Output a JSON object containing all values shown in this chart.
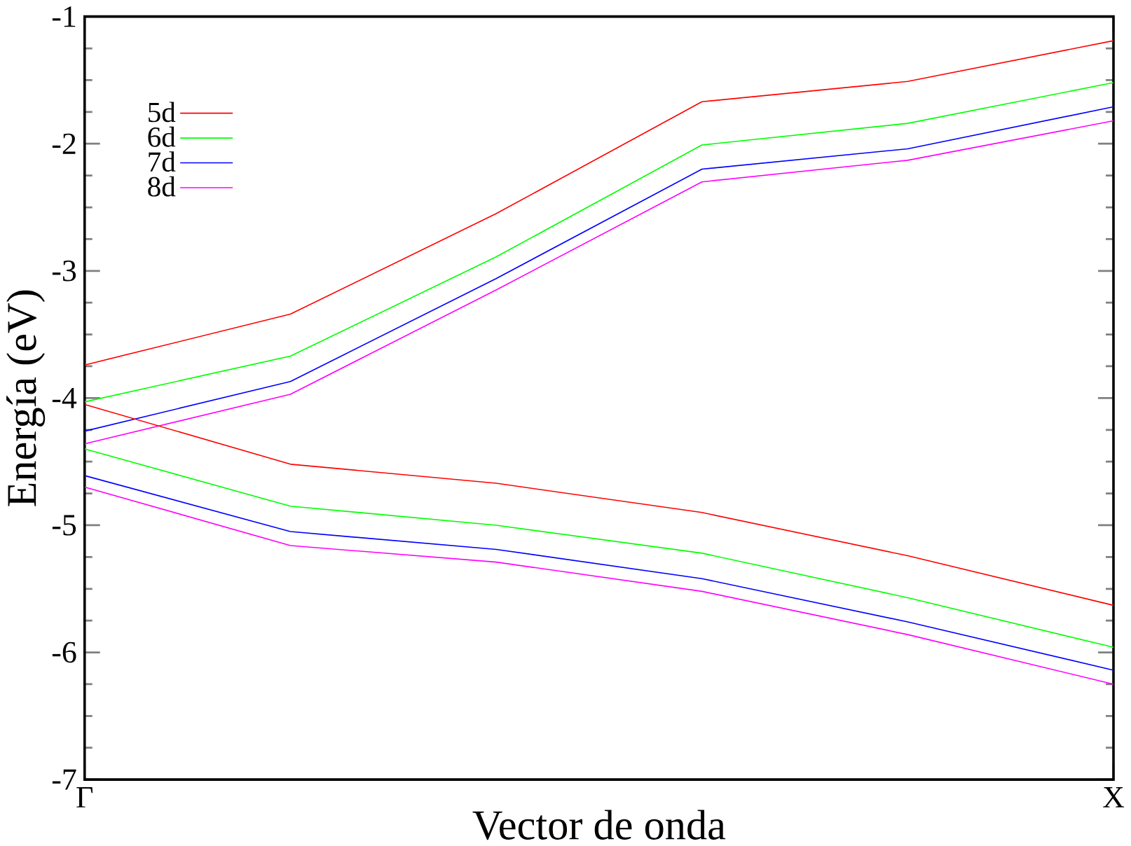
{
  "chart_data": {
    "type": "line",
    "xlabel": "Vector de onda",
    "ylabel": "Energía (eV)",
    "categories": [
      "Γ",
      null,
      null,
      null,
      null,
      "X"
    ],
    "ylim": [
      -7,
      -1
    ],
    "yticks": [
      -7,
      -6,
      -5,
      -4,
      -3,
      -2,
      -1
    ],
    "legend": "top left",
    "marker": "none",
    "line_style": "solid",
    "grid": false,
    "series": [
      {
        "name": "5d",
        "color": "#ff0000",
        "values": [
          -3.74,
          -3.34,
          -2.55,
          -1.67,
          -1.51,
          -1.19
        ]
      },
      {
        "name": "6d",
        "color": "#00ff00",
        "values": [
          -4.03,
          -3.67,
          -2.89,
          -2.01,
          -1.84,
          -1.52
        ]
      },
      {
        "name": "7d",
        "color": "#0000ff",
        "values": [
          -4.26,
          -3.87,
          -3.06,
          -2.2,
          -2.04,
          -1.71
        ]
      },
      {
        "name": "8d",
        "color": "#ff00ff",
        "values": [
          -4.36,
          -3.97,
          -3.15,
          -2.3,
          -2.13,
          -1.82
        ]
      },
      {
        "color": "#ff0000",
        "values": [
          -4.05,
          -4.52,
          -4.67,
          -4.9,
          -5.24,
          -5.63
        ]
      },
      {
        "color": "#00ff00",
        "values": [
          -4.4,
          -4.85,
          -5.0,
          -5.22,
          -5.57,
          -5.96
        ]
      },
      {
        "color": "#0000ff",
        "values": [
          -4.61,
          -5.05,
          -5.19,
          -5.42,
          -5.76,
          -6.14
        ]
      },
      {
        "color": "#ff00ff",
        "values": [
          -4.7,
          -5.16,
          -5.29,
          -5.52,
          -5.86,
          -6.25
        ]
      }
    ]
  }
}
